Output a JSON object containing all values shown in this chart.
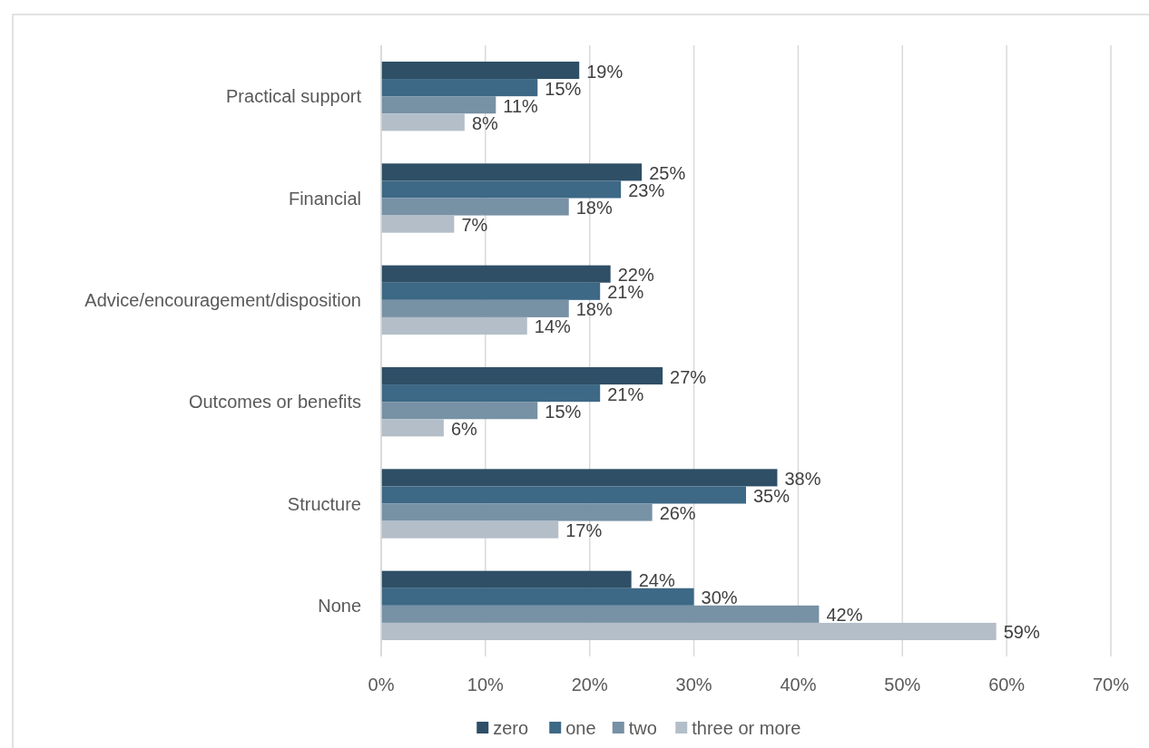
{
  "chart_data": {
    "type": "bar",
    "orientation": "horizontal",
    "categories": [
      "Practical support",
      "Financial",
      "Advice/encouragement/disposition",
      "Outcomes or benefits",
      "Structure",
      "None"
    ],
    "series": [
      {
        "name": "zero",
        "color": "#2e4f66",
        "values": [
          19,
          25,
          22,
          27,
          38,
          24
        ],
        "value_labels": [
          "19%",
          "25%",
          "22%",
          "27%",
          "38%",
          "24%"
        ]
      },
      {
        "name": "one",
        "color": "#3d6886",
        "values": [
          15,
          23,
          21,
          21,
          35,
          30
        ],
        "value_labels": [
          "15%",
          "23%",
          "21%",
          "21%",
          "35%",
          "30%"
        ]
      },
      {
        "name": "two",
        "color": "#7791a5",
        "values": [
          11,
          18,
          18,
          15,
          26,
          42
        ],
        "value_labels": [
          "11%",
          "18%",
          "18%",
          "15%",
          "26%",
          "42%"
        ]
      },
      {
        "name": "three or more",
        "color": "#b3bec9",
        "values": [
          8,
          7,
          14,
          6,
          17,
          59
        ],
        "value_labels": [
          "8%",
          "7%",
          "14%",
          "6%",
          "17%",
          "59%"
        ]
      }
    ],
    "xlim": [
      0,
      70
    ],
    "xticks": [
      {
        "value": 0,
        "label": "0%"
      },
      {
        "value": 10,
        "label": "10%"
      },
      {
        "value": 20,
        "label": "20%"
      },
      {
        "value": 30,
        "label": "30%"
      },
      {
        "value": 40,
        "label": "40%"
      },
      {
        "value": 50,
        "label": "50%"
      },
      {
        "value": 60,
        "label": "60%"
      },
      {
        "value": 70,
        "label": "70%"
      }
    ],
    "grid": "x",
    "legend": "bottom"
  }
}
